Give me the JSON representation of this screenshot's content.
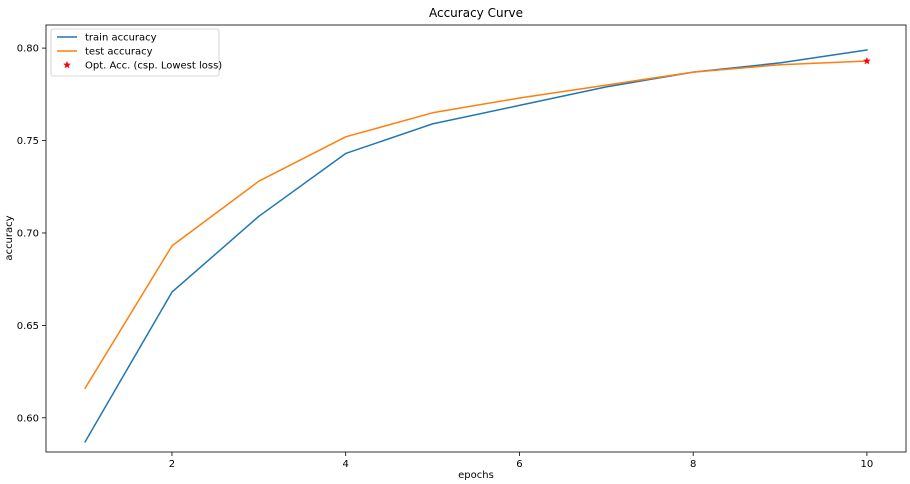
{
  "chart_data": {
    "type": "line",
    "title": "Accuracy Curve",
    "xlabel": "epochs",
    "ylabel": "accuracy",
    "xlim": [
      0.55,
      10.45
    ],
    "ylim": [
      0.5815,
      0.8125
    ],
    "xticks": [
      2,
      4,
      6,
      8,
      10
    ],
    "yticks": [
      0.6,
      0.65,
      0.7,
      0.75,
      0.8
    ],
    "xtick_labels": [
      "2",
      "4",
      "6",
      "8",
      "10"
    ],
    "ytick_labels": [
      "0.60",
      "0.65",
      "0.70",
      "0.75",
      "0.80"
    ],
    "grid": false,
    "legend_placement": "top-left",
    "x": [
      1,
      2,
      3,
      4,
      5,
      6,
      7,
      8,
      9,
      10
    ],
    "series": [
      {
        "name": "train accuracy",
        "color": "#1f77b4",
        "values": [
          0.587,
          0.668,
          0.709,
          0.743,
          0.759,
          0.769,
          0.779,
          0.787,
          0.792,
          0.799
        ]
      },
      {
        "name": "test accuracy",
        "color": "#ff7f0e",
        "values": [
          0.616,
          0.693,
          0.728,
          0.752,
          0.765,
          0.773,
          0.78,
          0.787,
          0.791,
          0.793
        ]
      }
    ],
    "markers": [
      {
        "name": "Opt. Acc. (csp. Lowest loss)",
        "color": "#ff0000",
        "symbol": "star",
        "x": 10,
        "y": 0.793
      }
    ]
  }
}
